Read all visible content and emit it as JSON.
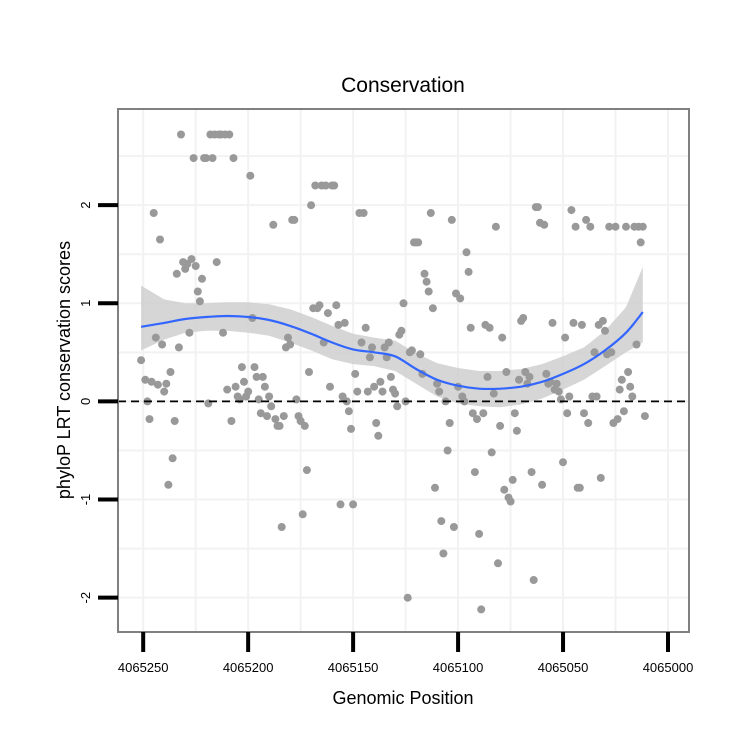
{
  "chart_data": {
    "type": "scatter",
    "title": "Conservation",
    "xlabel": "Genomic Position",
    "ylabel": "phyloP LRT conservation scores",
    "x_reversed": true,
    "xlim": [
      4065262,
      4064990
    ],
    "ylim": [
      -2.35,
      2.98
    ],
    "x_ticks": [
      4065250,
      4065200,
      4065150,
      4065100,
      4065050,
      4065000
    ],
    "x_tick_labels": [
      "4065250",
      "4065200",
      "4065150",
      "4065100",
      "4065050",
      "4065000"
    ],
    "y_ticks": [
      -2,
      -1,
      0,
      1,
      2
    ],
    "y_tick_labels": [
      "-2",
      "-1",
      "0",
      "1",
      "2"
    ],
    "grid": true,
    "reference_line": {
      "y": 0,
      "style": "dashed"
    },
    "colors": {
      "points": "#999999",
      "smooth_line": "#3366FF",
      "confidence_band": "#cccccc",
      "grid": "#f2f2f2",
      "panel_border": "#808080"
    },
    "points": [
      [
        4065251,
        0.42
      ],
      [
        4065249,
        0.22
      ],
      [
        4065248,
        0.0
      ],
      [
        4065247,
        -0.18
      ],
      [
        4065246,
        0.2
      ],
      [
        4065245,
        1.92
      ],
      [
        4065244,
        0.65
      ],
      [
        4065243,
        0.17
      ],
      [
        4065242,
        1.65
      ],
      [
        4065241,
        0.58
      ],
      [
        4065240,
        0.1
      ],
      [
        4065239,
        0.18
      ],
      [
        4065238,
        -0.85
      ],
      [
        4065237,
        0.3
      ],
      [
        4065236,
        -0.58
      ],
      [
        4065235,
        -0.2
      ],
      [
        4065234,
        1.3
      ],
      [
        4065233,
        0.55
      ],
      [
        4065232,
        2.72
      ],
      [
        4065231,
        1.42
      ],
      [
        4065230,
        1.35
      ],
      [
        4065229,
        1.4
      ],
      [
        4065228,
        0.7
      ],
      [
        4065227,
        1.45
      ],
      [
        4065226,
        2.48
      ],
      [
        4065225,
        1.38
      ],
      [
        4065224,
        1.12
      ],
      [
        4065223,
        1.02
      ],
      [
        4065222,
        1.25
      ],
      [
        4065221,
        2.48
      ],
      [
        4065220,
        2.48
      ],
      [
        4065219,
        -0.02
      ],
      [
        4065218,
        2.72
      ],
      [
        4065217,
        2.48
      ],
      [
        4065216,
        2.72
      ],
      [
        4065215,
        1.42
      ],
      [
        4065214,
        2.72
      ],
      [
        4065213,
        2.72
      ],
      [
        4065212,
        0.7
      ],
      [
        4065211,
        2.72
      ],
      [
        4065210,
        0.12
      ],
      [
        4065209,
        2.72
      ],
      [
        4065208,
        -0.2
      ],
      [
        4065207,
        2.48
      ],
      [
        4065206,
        0.15
      ],
      [
        4065205,
        0.05
      ],
      [
        4065204,
        0.02
      ],
      [
        4065203,
        0.35
      ],
      [
        4065202,
        0.2
      ],
      [
        4065201,
        0.05
      ],
      [
        4065200,
        0.1
      ],
      [
        4065199,
        2.3
      ],
      [
        4065198,
        0.85
      ],
      [
        4065197,
        0.35
      ],
      [
        4065196,
        0.25
      ],
      [
        4065195,
        0.02
      ],
      [
        4065194,
        -0.12
      ],
      [
        4065193,
        0.25
      ],
      [
        4065192,
        0.15
      ],
      [
        4065191,
        -0.15
      ],
      [
        4065190,
        0.05
      ],
      [
        4065189,
        -0.05
      ],
      [
        4065188,
        1.8
      ],
      [
        4065187,
        -0.18
      ],
      [
        4065186,
        -0.25
      ],
      [
        4065185,
        -0.25
      ],
      [
        4065184,
        -1.28
      ],
      [
        4065183,
        -0.15
      ],
      [
        4065182,
        0.55
      ],
      [
        4065181,
        0.65
      ],
      [
        4065180,
        0.58
      ],
      [
        4065179,
        1.85
      ],
      [
        4065178,
        1.85
      ],
      [
        4065177,
        0.02
      ],
      [
        4065176,
        -0.15
      ],
      [
        4065175,
        -0.2
      ],
      [
        4065174,
        -1.15
      ],
      [
        4065173,
        -0.25
      ],
      [
        4065172,
        -0.7
      ],
      [
        4065171,
        0.3
      ],
      [
        4065170,
        2.0
      ],
      [
        4065169,
        0.95
      ],
      [
        4065168,
        2.2
      ],
      [
        4065167,
        0.95
      ],
      [
        4065166,
        0.98
      ],
      [
        4065165,
        2.2
      ],
      [
        4065164,
        0.6
      ],
      [
        4065163,
        2.2
      ],
      [
        4065162,
        0.9
      ],
      [
        4065161,
        0.15
      ],
      [
        4065160,
        2.2
      ],
      [
        4065159,
        2.2
      ],
      [
        4065158,
        0.98
      ],
      [
        4065157,
        0.78
      ],
      [
        4065156,
        -1.05
      ],
      [
        4065155,
        0.05
      ],
      [
        4065154,
        0.8
      ],
      [
        4065153,
        0.0
      ],
      [
        4065152,
        -0.1
      ],
      [
        4065151,
        -0.28
      ],
      [
        4065150,
        -1.05
      ],
      [
        4065149,
        0.28
      ],
      [
        4065148,
        0.1
      ],
      [
        4065147,
        1.92
      ],
      [
        4065146,
        0.6
      ],
      [
        4065145,
        1.92
      ],
      [
        4065144,
        0.75
      ],
      [
        4065143,
        0.1
      ],
      [
        4065142,
        0.45
      ],
      [
        4065141,
        0.55
      ],
      [
        4065140,
        0.15
      ],
      [
        4065139,
        -0.22
      ],
      [
        4065138,
        -0.35
      ],
      [
        4065137,
        0.2
      ],
      [
        4065136,
        0.1
      ],
      [
        4065135,
        0.55
      ],
      [
        4065134,
        0.45
      ],
      [
        4065133,
        0.6
      ],
      [
        4065132,
        0.25
      ],
      [
        4065131,
        0.12
      ],
      [
        4065130,
        0.08
      ],
      [
        4065129,
        -0.05
      ],
      [
        4065128,
        0.68
      ],
      [
        4065127,
        0.72
      ],
      [
        4065126,
        1.0
      ],
      [
        4065125,
        0.0
      ],
      [
        4065124,
        -2.0
      ],
      [
        4065123,
        0.5
      ],
      [
        4065122,
        0.52
      ],
      [
        4065121,
        1.62
      ],
      [
        4065120,
        1.62
      ],
      [
        4065119,
        1.62
      ],
      [
        4065118,
        0.48
      ],
      [
        4065117,
        0.28
      ],
      [
        4065116,
        1.3
      ],
      [
        4065115,
        1.22
      ],
      [
        4065114,
        1.12
      ],
      [
        4065113,
        1.92
      ],
      [
        4065112,
        0.95
      ],
      [
        4065111,
        -0.88
      ],
      [
        4065110,
        0.18
      ],
      [
        4065109,
        0.1
      ],
      [
        4065108,
        -1.22
      ],
      [
        4065107,
        -1.55
      ],
      [
        4065106,
        0.0
      ],
      [
        4065105,
        -0.5
      ],
      [
        4065104,
        -0.22
      ],
      [
        4065103,
        1.85
      ],
      [
        4065102,
        -1.28
      ],
      [
        4065101,
        1.1
      ],
      [
        4065100,
        0.15
      ],
      [
        4065099,
        1.05
      ],
      [
        4065098,
        0.05
      ],
      [
        4065097,
        0.0
      ],
      [
        4065096,
        1.52
      ],
      [
        4065095,
        1.32
      ],
      [
        4065094,
        0.75
      ],
      [
        4065093,
        -0.12
      ],
      [
        4065092,
        -0.72
      ],
      [
        4065091,
        -0.18
      ],
      [
        4065090,
        -1.35
      ],
      [
        4065089,
        -2.12
      ],
      [
        4065088,
        -0.12
      ],
      [
        4065087,
        0.78
      ],
      [
        4065086,
        0.25
      ],
      [
        4065085,
        0.75
      ],
      [
        4065084,
        -0.52
      ],
      [
        4065083,
        0.08
      ],
      [
        4065082,
        1.78
      ],
      [
        4065081,
        -1.65
      ],
      [
        4065080,
        -0.25
      ],
      [
        4065079,
        0.65
      ],
      [
        4065078,
        -0.9
      ],
      [
        4065077,
        0.3
      ],
      [
        4065076,
        -0.98
      ],
      [
        4065075,
        -1.02
      ],
      [
        4065074,
        -0.8
      ],
      [
        4065073,
        -0.12
      ],
      [
        4065072,
        -0.3
      ],
      [
        4065071,
        0.22
      ],
      [
        4065070,
        0.82
      ],
      [
        4065069,
        0.85
      ],
      [
        4065068,
        0.3
      ],
      [
        4065067,
        0.18
      ],
      [
        4065066,
        0.25
      ],
      [
        4065065,
        -0.72
      ],
      [
        4065064,
        -1.82
      ],
      [
        4065063,
        1.98
      ],
      [
        4065062,
        1.98
      ],
      [
        4065061,
        1.82
      ],
      [
        4065060,
        -0.85
      ],
      [
        4065059,
        1.8
      ],
      [
        4065058,
        0.28
      ],
      [
        4065057,
        0.18
      ],
      [
        4065056,
        0.2
      ],
      [
        4065055,
        0.8
      ],
      [
        4065054,
        0.12
      ],
      [
        4065053,
        0.18
      ],
      [
        4065052,
        0.1
      ],
      [
        4065051,
        0.02
      ],
      [
        4065050,
        -0.62
      ],
      [
        4065049,
        0.65
      ],
      [
        4065048,
        -0.12
      ],
      [
        4065047,
        0.05
      ],
      [
        4065046,
        1.95
      ],
      [
        4065045,
        0.8
      ],
      [
        4065044,
        1.78
      ],
      [
        4065043,
        -0.88
      ],
      [
        4065042,
        -0.88
      ],
      [
        4065041,
        0.78
      ],
      [
        4065040,
        -0.12
      ],
      [
        4065039,
        1.85
      ],
      [
        4065038,
        -0.22
      ],
      [
        4065037,
        1.78
      ],
      [
        4065036,
        0.05
      ],
      [
        4065035,
        0.5
      ],
      [
        4065034,
        0.05
      ],
      [
        4065033,
        0.78
      ],
      [
        4065032,
        -0.78
      ],
      [
        4065031,
        0.82
      ],
      [
        4065030,
        0.72
      ],
      [
        4065029,
        0.48
      ],
      [
        4065028,
        1.78
      ],
      [
        4065027,
        0.5
      ],
      [
        4065026,
        -0.22
      ],
      [
        4065025,
        1.78
      ],
      [
        4065024,
        -0.18
      ],
      [
        4065023,
        0.12
      ],
      [
        4065022,
        0.22
      ],
      [
        4065021,
        -0.1
      ],
      [
        4065020,
        1.78
      ],
      [
        4065019,
        0.3
      ],
      [
        4065018,
        0.15
      ],
      [
        4065017,
        0.05
      ],
      [
        4065016,
        1.78
      ],
      [
        4065015,
        0.58
      ],
      [
        4065014,
        1.78
      ],
      [
        4065013,
        1.62
      ],
      [
        4065012,
        1.78
      ],
      [
        4065011,
        -0.15
      ]
    ],
    "smooth": {
      "x": [
        4065251,
        4065240,
        4065230,
        4065220,
        4065210,
        4065200,
        4065190,
        4065180,
        4065170,
        4065160,
        4065150,
        4065140,
        4065130,
        4065120,
        4065110,
        4065100,
        4065090,
        4065080,
        4065070,
        4065060,
        4065050,
        4065040,
        4065030,
        4065020,
        4065012
      ],
      "y": [
        0.76,
        0.8,
        0.84,
        0.86,
        0.87,
        0.86,
        0.83,
        0.77,
        0.69,
        0.6,
        0.53,
        0.5,
        0.46,
        0.33,
        0.22,
        0.16,
        0.13,
        0.13,
        0.15,
        0.2,
        0.28,
        0.38,
        0.52,
        0.7,
        0.91
      ],
      "lower": [
        0.52,
        0.63,
        0.7,
        0.72,
        0.72,
        0.7,
        0.67,
        0.6,
        0.52,
        0.43,
        0.38,
        0.36,
        0.31,
        0.18,
        0.05,
        -0.02,
        -0.05,
        -0.06,
        -0.03,
        0.03,
        0.12,
        0.22,
        0.36,
        0.5,
        0.6
      ],
      "upper": [
        1.18,
        1.04,
        1.0,
        1.0,
        1.01,
        1.01,
        0.99,
        0.94,
        0.86,
        0.77,
        0.69,
        0.65,
        0.62,
        0.49,
        0.39,
        0.34,
        0.31,
        0.31,
        0.33,
        0.38,
        0.46,
        0.55,
        0.72,
        0.96,
        1.37
      ]
    }
  }
}
